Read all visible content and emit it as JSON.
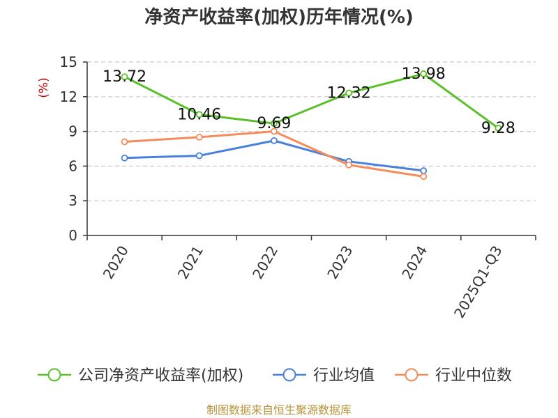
{
  "chart_data": {
    "type": "line",
    "title": "净资产收益率(加权)历年情况(%)",
    "ylabel": "(%)",
    "xlabel": "",
    "ylim": [
      0,
      15
    ],
    "yticks": [
      0,
      3,
      6,
      9,
      12,
      15
    ],
    "grid": true,
    "legend_position": "bottom",
    "categories": [
      "2020",
      "2021",
      "2022",
      "2023",
      "2024",
      "2025Q1-Q3"
    ],
    "series": [
      {
        "name": "公司净资产收益率(加权)",
        "color": "#5cbf2a",
        "values": [
          13.72,
          10.46,
          9.69,
          12.32,
          13.98,
          9.28
        ],
        "labels": [
          "13.72",
          "10.46",
          "9.69",
          "12.32",
          "13.98",
          "9.28"
        ]
      },
      {
        "name": "行业均值",
        "color": "#4a7fdb",
        "values": [
          6.7,
          6.9,
          8.2,
          6.4,
          5.6,
          null
        ]
      },
      {
        "name": "行业中位数",
        "color": "#f58b5a",
        "values": [
          8.1,
          8.5,
          9.0,
          6.1,
          5.1,
          null
        ]
      }
    ],
    "source": "制图数据来自恒生聚源数据库"
  }
}
